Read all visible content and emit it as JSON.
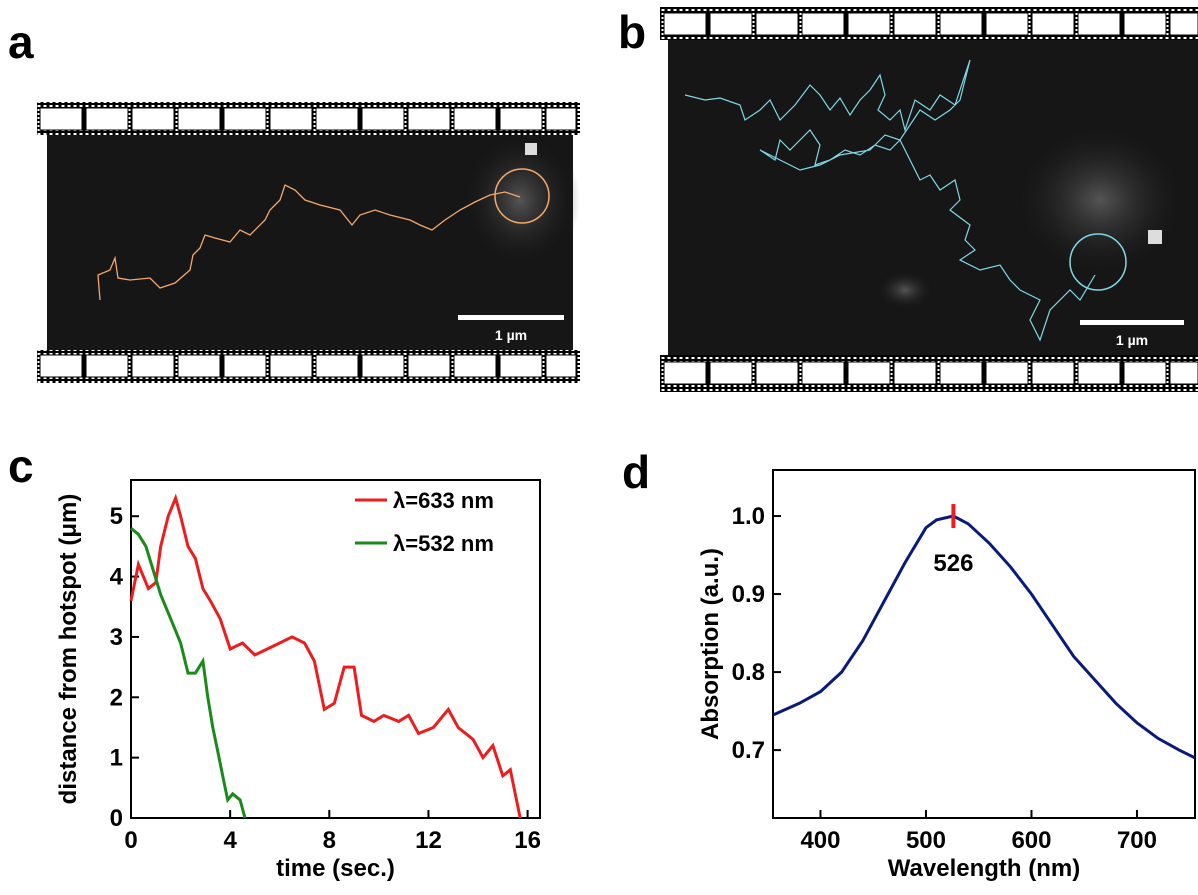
{
  "panels": [
    {
      "label": "a",
      "scale_bar": "1 µm"
    },
    {
      "label": "b",
      "scale_bar": "1 µm"
    }
  ],
  "chart_data": [
    {
      "type": "line",
      "panel_label": "c",
      "xlabel": "time (sec.)",
      "ylabel": "distance from hotspot (μm)",
      "xlim": [
        0,
        16.5
      ],
      "ylim": [
        0,
        5.6
      ],
      "xticks": [
        0,
        4,
        8,
        12,
        16
      ],
      "yticks": [
        0,
        1,
        2,
        3,
        4,
        5
      ],
      "series": [
        {
          "name": "λ=633 nm",
          "color": "#ee1c1c",
          "x": [
            0,
            0.3,
            0.5,
            0.7,
            1.0,
            1.2,
            1.5,
            1.8,
            2.0,
            2.3,
            2.6,
            2.9,
            3.2,
            3.6,
            4.0,
            4.5,
            5.0,
            5.5,
            6.0,
            6.5,
            7.0,
            7.4,
            7.8,
            8.2,
            8.6,
            9.0,
            9.3,
            9.8,
            10.2,
            10.8,
            11.2,
            11.6,
            12.2,
            12.8,
            13.2,
            13.8,
            14.2,
            14.6,
            15.0,
            15.3,
            15.7
          ],
          "values": [
            3.6,
            4.2,
            4.0,
            3.8,
            3.9,
            4.5,
            5.0,
            5.3,
            5.0,
            4.5,
            4.3,
            3.8,
            3.6,
            3.3,
            2.8,
            2.9,
            2.7,
            2.8,
            2.9,
            3.0,
            2.9,
            2.6,
            1.8,
            1.9,
            2.5,
            2.5,
            1.7,
            1.6,
            1.7,
            1.6,
            1.7,
            1.4,
            1.5,
            1.8,
            1.5,
            1.3,
            1.0,
            1.2,
            0.7,
            0.8,
            0
          ]
        },
        {
          "name": "λ=532 nm",
          "color": "#1a8a1a",
          "x": [
            0,
            0.3,
            0.6,
            0.9,
            1.2,
            1.6,
            2.0,
            2.3,
            2.6,
            2.9,
            3.1,
            3.3,
            3.5,
            3.7,
            3.9,
            4.1,
            4.4,
            4.6
          ],
          "values": [
            4.8,
            4.7,
            4.5,
            4.1,
            3.7,
            3.3,
            2.9,
            2.4,
            2.4,
            2.6,
            2.0,
            1.5,
            1.1,
            0.7,
            0.3,
            0.4,
            0.3,
            0
          ]
        }
      ]
    },
    {
      "type": "line",
      "panel_label": "d",
      "xlabel": "Wavelength (nm)",
      "ylabel": "Absorption (a.u.)",
      "xlim": [
        355,
        755
      ],
      "ylim": [
        0.613,
        1.059
      ],
      "xticks": [
        400,
        500,
        600,
        700
      ],
      "yticks": [
        0.7,
        0.8,
        0.9,
        {
          "value": 1,
          "label": "1.0"
        }
      ],
      "peak": 526,
      "peak_color": "#ee1c1c",
      "series": [
        {
          "color": "#0a1a7a",
          "x": [
            355,
            380,
            400,
            420,
            440,
            460,
            480,
            500,
            510,
            526,
            540,
            560,
            580,
            600,
            620,
            640,
            660,
            680,
            700,
            720,
            740,
            755
          ],
          "values": [
            0.745,
            0.76,
            0.775,
            0.8,
            0.84,
            0.89,
            0.94,
            0.985,
            0.995,
            1.0,
            0.99,
            0.965,
            0.935,
            0.9,
            0.86,
            0.82,
            0.79,
            0.76,
            0.735,
            0.715,
            0.7,
            0.69
          ]
        }
      ]
    }
  ]
}
